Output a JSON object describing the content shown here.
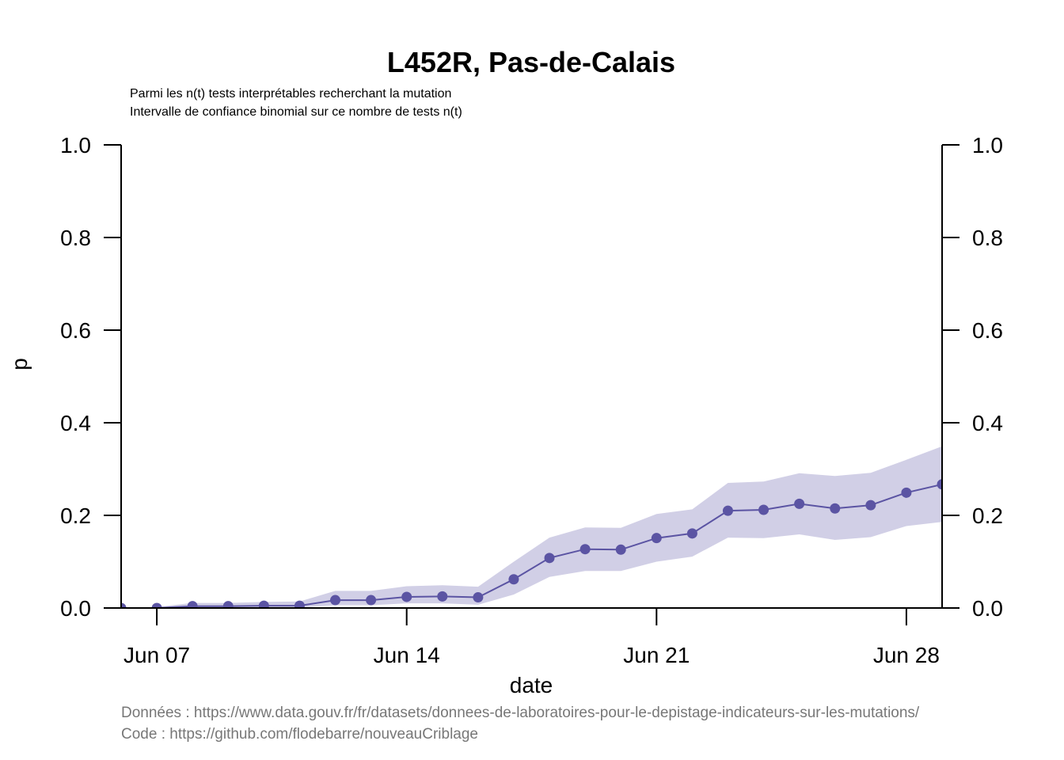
{
  "chart_data": {
    "type": "line",
    "title": "L452R, Pas-de-Calais",
    "subtitles": [
      "Parmi les n(t) tests interprétables recherchant la mutation",
      "Intervalle de confiance binomial sur ce nombre de tests n(t)"
    ],
    "xlabel": "date",
    "ylabel": "p",
    "ylim": [
      0,
      1
    ],
    "yticks": [
      "0.0",
      "0.2",
      "0.4",
      "0.6",
      "0.8",
      "1.0"
    ],
    "xticks": [
      {
        "label": "Jun 07",
        "date": "2021-06-07"
      },
      {
        "label": "Jun 14",
        "date": "2021-06-14"
      },
      {
        "label": "Jun 21",
        "date": "2021-06-21"
      },
      {
        "label": "Jun 28",
        "date": "2021-06-28"
      }
    ],
    "xlim": [
      "2021-06-06",
      "2021-06-29"
    ],
    "series": [
      {
        "color": "#5b54a3",
        "band_color": "#d1cfe6",
        "points": [
          {
            "date": "2021-06-06",
            "p": 0.0,
            "lo": 0.0,
            "hi": 0.0
          },
          {
            "date": "2021-06-07",
            "p": 0.0,
            "lo": 0.0,
            "hi": 0.002
          },
          {
            "date": "2021-06-08",
            "p": 0.004,
            "lo": 0.001,
            "hi": 0.011
          },
          {
            "date": "2021-06-09",
            "p": 0.004,
            "lo": 0.001,
            "hi": 0.011
          },
          {
            "date": "2021-06-10",
            "p": 0.005,
            "lo": 0.001,
            "hi": 0.013
          },
          {
            "date": "2021-06-11",
            "p": 0.005,
            "lo": 0.001,
            "hi": 0.014
          },
          {
            "date": "2021-06-12",
            "p": 0.017,
            "lo": 0.006,
            "hi": 0.037
          },
          {
            "date": "2021-06-13",
            "p": 0.017,
            "lo": 0.006,
            "hi": 0.037
          },
          {
            "date": "2021-06-14",
            "p": 0.024,
            "lo": 0.01,
            "hi": 0.047
          },
          {
            "date": "2021-06-15",
            "p": 0.025,
            "lo": 0.01,
            "hi": 0.049
          },
          {
            "date": "2021-06-16",
            "p": 0.023,
            "lo": 0.007,
            "hi": 0.046
          },
          {
            "date": "2021-06-17",
            "p": 0.062,
            "lo": 0.029,
            "hi": 0.1
          },
          {
            "date": "2021-06-18",
            "p": 0.108,
            "lo": 0.067,
            "hi": 0.152
          },
          {
            "date": "2021-06-19",
            "p": 0.127,
            "lo": 0.08,
            "hi": 0.174
          },
          {
            "date": "2021-06-20",
            "p": 0.126,
            "lo": 0.08,
            "hi": 0.173
          },
          {
            "date": "2021-06-21",
            "p": 0.151,
            "lo": 0.1,
            "hi": 0.203
          },
          {
            "date": "2021-06-22",
            "p": 0.161,
            "lo": 0.111,
            "hi": 0.213
          },
          {
            "date": "2021-06-23",
            "p": 0.21,
            "lo": 0.152,
            "hi": 0.27
          },
          {
            "date": "2021-06-24",
            "p": 0.212,
            "lo": 0.151,
            "hi": 0.273
          },
          {
            "date": "2021-06-25",
            "p": 0.225,
            "lo": 0.159,
            "hi": 0.291
          },
          {
            "date": "2021-06-26",
            "p": 0.215,
            "lo": 0.147,
            "hi": 0.285
          },
          {
            "date": "2021-06-27",
            "p": 0.222,
            "lo": 0.153,
            "hi": 0.292
          },
          {
            "date": "2021-06-28",
            "p": 0.249,
            "lo": 0.177,
            "hi": 0.32
          },
          {
            "date": "2021-06-29",
            "p": 0.267,
            "lo": 0.186,
            "hi": 0.349
          }
        ]
      }
    ]
  },
  "captions": [
    "Données : https://www.data.gouv.fr/fr/datasets/donnees-de-laboratoires-pour-le-depistage-indicateurs-sur-les-mutations/",
    "Code : https://github.com/flodebarre/nouveauCriblage"
  ]
}
